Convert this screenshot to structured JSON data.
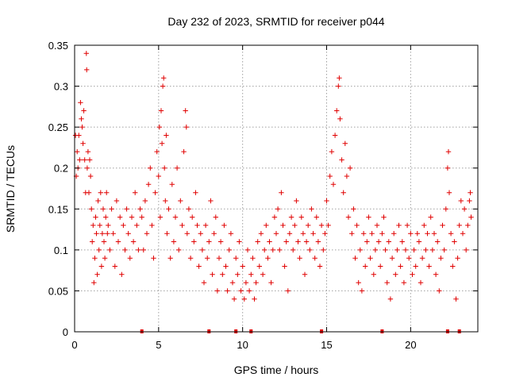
{
  "chart_data": {
    "type": "scatter",
    "title": "Day 232 of 2023, SRMTID for receiver p044",
    "xlabel": "GPS time / hours",
    "ylabel": "SRMTID / TECUs",
    "xlim": [
      0,
      24
    ],
    "ylim": [
      0,
      0.35
    ],
    "x_ticks": [
      0,
      5,
      10,
      15,
      20
    ],
    "x_tick_labels": [
      "0",
      "5",
      "10",
      "15",
      "20"
    ],
    "y_ticks": [
      0,
      0.05,
      0.1,
      0.15,
      0.2,
      0.25,
      0.3,
      0.35
    ],
    "y_tick_labels": [
      "0",
      "0.05",
      "0.1",
      "0.15",
      "0.2",
      "0.25",
      "0.3",
      "0.35"
    ],
    "grid": true,
    "series_color": "#e00000",
    "series": [
      {
        "name": "SRMTID",
        "points": [
          [
            0.05,
            0.24
          ],
          [
            0.1,
            0.19
          ],
          [
            0.15,
            0.22
          ],
          [
            0.2,
            0.2
          ],
          [
            0.25,
            0.24
          ],
          [
            0.3,
            0.21
          ],
          [
            0.35,
            0.28
          ],
          [
            0.4,
            0.26
          ],
          [
            0.45,
            0.25
          ],
          [
            0.5,
            0.23
          ],
          [
            0.55,
            0.27
          ],
          [
            0.6,
            0.21
          ],
          [
            0.65,
            0.17
          ],
          [
            0.7,
            0.34
          ],
          [
            0.72,
            0.32
          ],
          [
            0.75,
            0.2
          ],
          [
            0.8,
            0.22
          ],
          [
            0.85,
            0.17
          ],
          [
            0.9,
            0.21
          ],
          [
            0.95,
            0.19
          ],
          [
            1.0,
            0.15
          ],
          [
            1.05,
            0.11
          ],
          [
            1.1,
            0.13
          ],
          [
            1.15,
            0.06
          ],
          [
            1.2,
            0.09
          ],
          [
            1.25,
            0.14
          ],
          [
            1.3,
            0.12
          ],
          [
            1.35,
            0.07
          ],
          [
            1.4,
            0.16
          ],
          [
            1.45,
            0.1
          ],
          [
            1.5,
            0.13
          ],
          [
            1.55,
            0.17
          ],
          [
            1.6,
            0.08
          ],
          [
            1.65,
            0.12
          ],
          [
            1.7,
            0.15
          ],
          [
            1.75,
            0.11
          ],
          [
            1.8,
            0.09
          ],
          [
            1.85,
            0.14
          ],
          [
            1.9,
            0.17
          ],
          [
            1.95,
            0.12
          ],
          [
            2.0,
            0.13
          ],
          [
            2.1,
            0.1
          ],
          [
            2.2,
            0.15
          ],
          [
            2.3,
            0.12
          ],
          [
            2.4,
            0.08
          ],
          [
            2.5,
            0.16
          ],
          [
            2.6,
            0.11
          ],
          [
            2.7,
            0.14
          ],
          [
            2.8,
            0.07
          ],
          [
            2.9,
            0.13
          ],
          [
            3.0,
            0.1
          ],
          [
            3.1,
            0.15
          ],
          [
            3.2,
            0.12
          ],
          [
            3.3,
            0.09
          ],
          [
            3.4,
            0.14
          ],
          [
            3.5,
            0.11
          ],
          [
            3.6,
            0.17
          ],
          [
            3.7,
            0.13
          ],
          [
            3.8,
            0.1
          ],
          [
            3.9,
            0.15
          ],
          [
            4.0,
            0.14
          ],
          [
            4.1,
            0.1
          ],
          [
            4.2,
            0.16
          ],
          [
            4.3,
            0.12
          ],
          [
            4.4,
            0.18
          ],
          [
            4.5,
            0.2
          ],
          [
            4.6,
            0.13
          ],
          [
            4.7,
            0.09
          ],
          [
            4.8,
            0.17
          ],
          [
            4.9,
            0.22
          ],
          [
            5.0,
            0.19
          ],
          [
            5.05,
            0.25
          ],
          [
            5.1,
            0.14
          ],
          [
            5.15,
            0.27
          ],
          [
            5.2,
            0.23
          ],
          [
            5.25,
            0.3
          ],
          [
            5.3,
            0.31
          ],
          [
            5.35,
            0.2
          ],
          [
            5.4,
            0.16
          ],
          [
            5.45,
            0.24
          ],
          [
            5.5,
            0.12
          ],
          [
            5.6,
            0.15
          ],
          [
            5.7,
            0.09
          ],
          [
            5.8,
            0.18
          ],
          [
            5.9,
            0.11
          ],
          [
            6.0,
            0.14
          ],
          [
            6.1,
            0.2
          ],
          [
            6.2,
            0.1
          ],
          [
            6.3,
            0.16
          ],
          [
            6.4,
            0.13
          ],
          [
            6.5,
            0.22
          ],
          [
            6.6,
            0.27
          ],
          [
            6.65,
            0.25
          ],
          [
            6.7,
            0.12
          ],
          [
            6.8,
            0.15
          ],
          [
            6.9,
            0.09
          ],
          [
            7.0,
            0.14
          ],
          [
            7.1,
            0.11
          ],
          [
            7.2,
            0.17
          ],
          [
            7.3,
            0.13
          ],
          [
            7.4,
            0.08
          ],
          [
            7.5,
            0.12
          ],
          [
            7.6,
            0.1
          ],
          [
            7.7,
            0.06
          ],
          [
            7.8,
            0.13
          ],
          [
            7.9,
            0.09
          ],
          [
            8.0,
            0.11
          ],
          [
            8.1,
            0.16
          ],
          [
            8.2,
            0.07
          ],
          [
            8.3,
            0.12
          ],
          [
            8.4,
            0.14
          ],
          [
            8.5,
            0.05
          ],
          [
            8.6,
            0.09
          ],
          [
            8.7,
            0.11
          ],
          [
            8.8,
            0.07
          ],
          [
            8.9,
            0.13
          ],
          [
            9.0,
            0.08
          ],
          [
            9.1,
            0.05
          ],
          [
            9.2,
            0.1
          ],
          [
            9.3,
            0.12
          ],
          [
            9.4,
            0.06
          ],
          [
            9.5,
            0.04
          ],
          [
            9.6,
            0.09
          ],
          [
            9.7,
            0.07
          ],
          [
            9.8,
            0.11
          ],
          [
            9.9,
            0.05
          ],
          [
            10.0,
            0.08
          ],
          [
            10.1,
            0.04
          ],
          [
            10.2,
            0.06
          ],
          [
            10.3,
            0.1
          ],
          [
            10.4,
            0.05
          ],
          [
            10.5,
            0.07
          ],
          [
            10.6,
            0.09
          ],
          [
            10.7,
            0.04
          ],
          [
            10.8,
            0.06
          ],
          [
            10.9,
            0.11
          ],
          [
            11.0,
            0.08
          ],
          [
            11.1,
            0.12
          ],
          [
            11.2,
            0.07
          ],
          [
            11.3,
            0.1
          ],
          [
            11.4,
            0.13
          ],
          [
            11.5,
            0.09
          ],
          [
            11.6,
            0.11
          ],
          [
            11.7,
            0.06
          ],
          [
            11.8,
            0.1
          ],
          [
            11.9,
            0.14
          ],
          [
            12.0,
            0.12
          ],
          [
            12.1,
            0.15
          ],
          [
            12.2,
            0.1
          ],
          [
            12.3,
            0.17
          ],
          [
            12.4,
            0.13
          ],
          [
            12.5,
            0.08
          ],
          [
            12.6,
            0.11
          ],
          [
            12.7,
            0.05
          ],
          [
            12.8,
            0.12
          ],
          [
            12.9,
            0.14
          ],
          [
            13.0,
            0.1
          ],
          [
            13.1,
            0.13
          ],
          [
            13.2,
            0.16
          ],
          [
            13.3,
            0.11
          ],
          [
            13.4,
            0.09
          ],
          [
            13.5,
            0.14
          ],
          [
            13.6,
            0.12
          ],
          [
            13.7,
            0.07
          ],
          [
            13.8,
            0.11
          ],
          [
            13.9,
            0.13
          ],
          [
            14.0,
            0.1
          ],
          [
            14.1,
            0.15
          ],
          [
            14.2,
            0.12
          ],
          [
            14.3,
            0.09
          ],
          [
            14.4,
            0.14
          ],
          [
            14.5,
            0.11
          ],
          [
            14.6,
            0.08
          ],
          [
            14.7,
            0.13
          ],
          [
            14.8,
            0.1
          ],
          [
            14.9,
            0.12
          ],
          [
            15.0,
            0.16
          ],
          [
            15.1,
            0.13
          ],
          [
            15.2,
            0.19
          ],
          [
            15.3,
            0.22
          ],
          [
            15.4,
            0.18
          ],
          [
            15.5,
            0.24
          ],
          [
            15.6,
            0.27
          ],
          [
            15.7,
            0.3
          ],
          [
            15.75,
            0.31
          ],
          [
            15.8,
            0.26
          ],
          [
            15.9,
            0.21
          ],
          [
            16.0,
            0.17
          ],
          [
            16.1,
            0.23
          ],
          [
            16.2,
            0.19
          ],
          [
            16.3,
            0.14
          ],
          [
            16.4,
            0.2
          ],
          [
            16.5,
            0.12
          ],
          [
            16.6,
            0.15
          ],
          [
            16.7,
            0.09
          ],
          [
            16.8,
            0.13
          ],
          [
            16.9,
            0.06
          ],
          [
            17.0,
            0.1
          ],
          [
            17.1,
            0.05
          ],
          [
            17.2,
            0.12
          ],
          [
            17.3,
            0.08
          ],
          [
            17.4,
            0.11
          ],
          [
            17.5,
            0.14
          ],
          [
            17.6,
            0.09
          ],
          [
            17.7,
            0.12
          ],
          [
            17.8,
            0.07
          ],
          [
            17.9,
            0.1
          ],
          [
            18.0,
            0.13
          ],
          [
            18.1,
            0.11
          ],
          [
            18.2,
            0.08
          ],
          [
            18.3,
            0.12
          ],
          [
            18.4,
            0.14
          ],
          [
            18.5,
            0.1
          ],
          [
            18.6,
            0.06
          ],
          [
            18.7,
            0.11
          ],
          [
            18.8,
            0.04
          ],
          [
            18.9,
            0.09
          ],
          [
            19.0,
            0.12
          ],
          [
            19.1,
            0.07
          ],
          [
            19.2,
            0.1
          ],
          [
            19.3,
            0.13
          ],
          [
            19.4,
            0.08
          ],
          [
            19.5,
            0.11
          ],
          [
            19.6,
            0.06
          ],
          [
            19.7,
            0.1
          ],
          [
            19.8,
            0.13
          ],
          [
            19.9,
            0.09
          ],
          [
            20.0,
            0.12
          ],
          [
            20.1,
            0.07
          ],
          [
            20.2,
            0.1
          ],
          [
            20.3,
            0.08
          ],
          [
            20.4,
            0.12
          ],
          [
            20.5,
            0.11
          ],
          [
            20.6,
            0.06
          ],
          [
            20.7,
            0.09
          ],
          [
            20.8,
            0.13
          ],
          [
            20.9,
            0.1
          ],
          [
            21.0,
            0.12
          ],
          [
            21.1,
            0.08
          ],
          [
            21.2,
            0.14
          ],
          [
            21.3,
            0.1
          ],
          [
            21.4,
            0.12
          ],
          [
            21.5,
            0.07
          ],
          [
            21.6,
            0.11
          ],
          [
            21.7,
            0.05
          ],
          [
            21.8,
            0.09
          ],
          [
            21.9,
            0.13
          ],
          [
            22.0,
            0.1
          ],
          [
            22.1,
            0.15
          ],
          [
            22.2,
            0.2
          ],
          [
            22.25,
            0.22
          ],
          [
            22.3,
            0.17
          ],
          [
            22.4,
            0.12
          ],
          [
            22.5,
            0.08
          ],
          [
            22.6,
            0.11
          ],
          [
            22.7,
            0.04
          ],
          [
            22.8,
            0.09
          ],
          [
            22.9,
            0.13
          ],
          [
            23.0,
            0.16
          ],
          [
            23.1,
            0.12
          ],
          [
            23.2,
            0.15
          ],
          [
            23.3,
            0.1
          ],
          [
            23.4,
            0.13
          ],
          [
            23.5,
            0.16
          ],
          [
            23.55,
            0.17
          ],
          [
            23.6,
            0.14
          ]
        ]
      }
    ],
    "zero_points": [
      4.0,
      8.0,
      9.6,
      10.5,
      14.7,
      18.3,
      22.2,
      22.9
    ]
  }
}
